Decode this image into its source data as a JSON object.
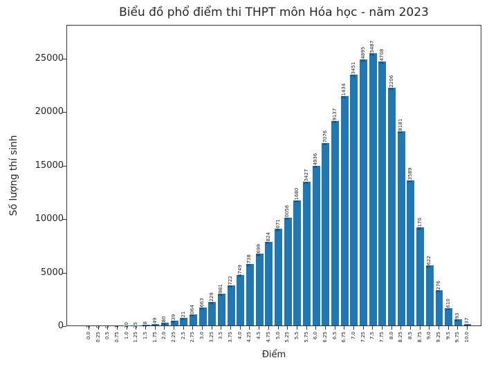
{
  "chart_data": {
    "type": "bar",
    "title": "Biểu đồ phổ điểm thi THPT môn Hóa học - năm 2023",
    "xlabel": "Điểm",
    "ylabel": "Số lượng thí sinh",
    "categories": [
      "0.0",
      "0.25",
      "0.5",
      "0.75",
      "1.0",
      "1.25",
      "1.5",
      "1.75",
      "2.0",
      "2.25",
      "2.5",
      "2.75",
      "3.0",
      "3.25",
      "3.5",
      "3.75",
      "4.0",
      "4.25",
      "4.5",
      "4.75",
      "5.0",
      "5.25",
      "5.5",
      "5.75",
      "6.0",
      "6.25",
      "6.5",
      "6.75",
      "7.0",
      "7.25",
      "7.5",
      "7.75",
      "8.0",
      "8.25",
      "8.5",
      "8.75",
      "9.0",
      "9.25",
      "9.5",
      "9.75",
      "10.0"
    ],
    "values": [
      3,
      0,
      0,
      1,
      10,
      25,
      78,
      149,
      280,
      439,
      721,
      1064,
      1663,
      2229,
      2981,
      3722,
      4749,
      5738,
      6699,
      7824,
      9071,
      10056,
      11680,
      13427,
      14936,
      17076,
      19137,
      21434,
      23451,
      24895,
      25487,
      24708,
      22206,
      18181,
      13589,
      9170,
      5622,
      3276,
      1610,
      593,
      137
    ],
    "yticks": [
      "0",
      "5000",
      "10000",
      "15000",
      "20000",
      "25000"
    ],
    "ylim": [
      0,
      28170
    ],
    "bar_color": "#1f77b4",
    "grid": false,
    "legend": null
  }
}
